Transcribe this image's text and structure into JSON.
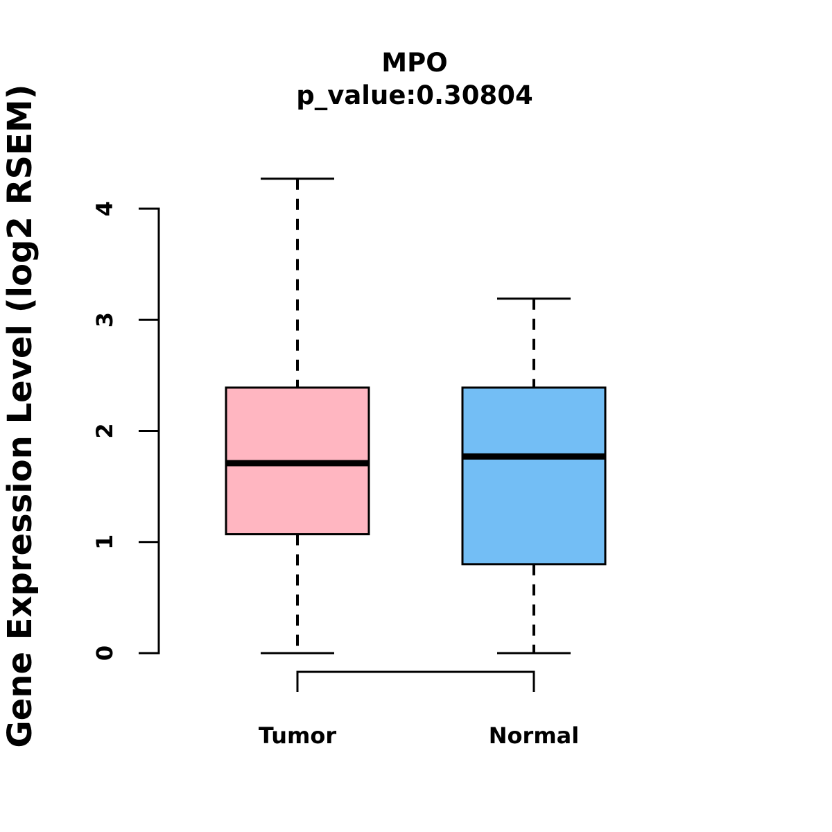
{
  "chart_data": {
    "type": "boxplot",
    "title": "MPO",
    "subtitle": "p_value:0.30804",
    "ylabel": "Gene Expression Level (log2 RSEM)",
    "xlabel": "",
    "ylim": [
      0,
      4.3
    ],
    "yticks": [
      0,
      1,
      2,
      3,
      4
    ],
    "ytick_labels": [
      "0",
      "1",
      "2",
      "3",
      "4"
    ],
    "categories": [
      "Tumor",
      "Normal"
    ],
    "series": [
      {
        "name": "Tumor",
        "box_color": "#FFB6C1",
        "whisker_low": 0.0,
        "q1": 1.07,
        "median": 1.71,
        "q3": 2.39,
        "whisker_high": 4.27
      },
      {
        "name": "Normal",
        "box_color": "#73BEF5",
        "whisker_low": 0.0,
        "q1": 0.8,
        "median": 1.77,
        "q3": 2.39,
        "whisker_high": 3.19
      }
    ],
    "comparison_bracket": {
      "from": "Tumor",
      "to": "Normal"
    },
    "style": {
      "line_color": "#000000",
      "background": "#FFFFFF",
      "whisker_style": "dashed",
      "legend": "none",
      "grid": "off"
    }
  }
}
